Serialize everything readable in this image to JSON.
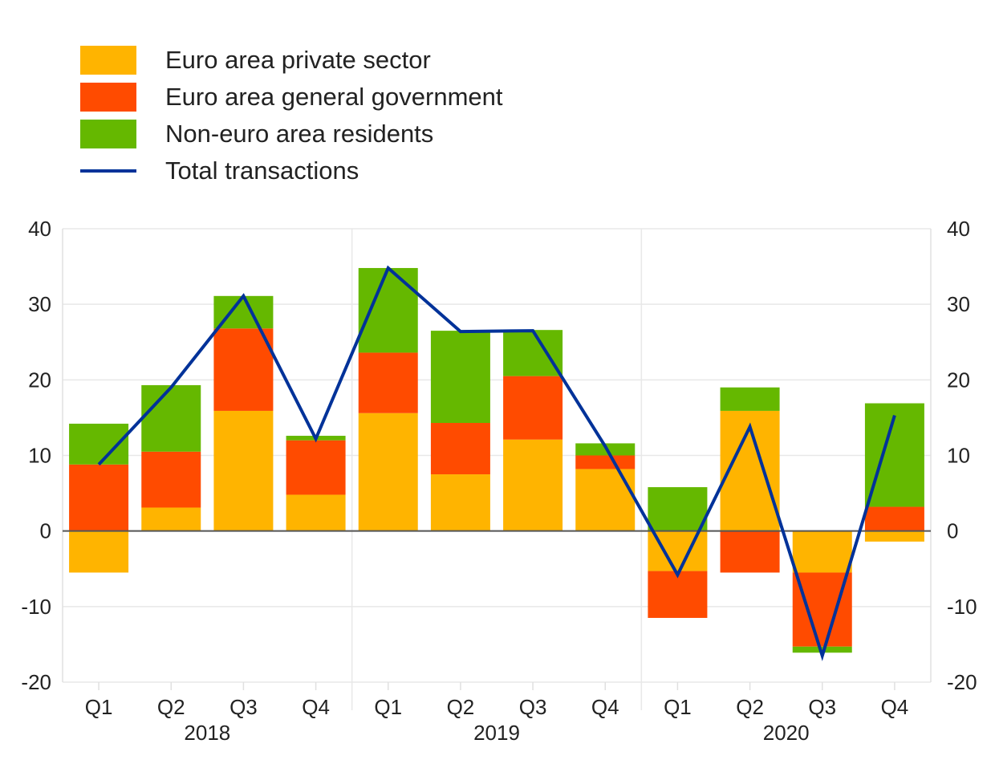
{
  "chart_data": {
    "type": "bar",
    "stacked": true,
    "title": "",
    "xlabel": "",
    "ylabel": "",
    "ylim": [
      -20,
      40
    ],
    "yticks": [
      40,
      30,
      20,
      10,
      0,
      -10,
      -20
    ],
    "grid": true,
    "legend_position": "top-left",
    "categories": [
      "Q1",
      "Q2",
      "Q3",
      "Q4",
      "Q1",
      "Q2",
      "Q3",
      "Q4",
      "Q1",
      "Q2",
      "Q3",
      "Q4"
    ],
    "year_groups": [
      {
        "label": "2018",
        "start": 0,
        "end": 3
      },
      {
        "label": "2019",
        "start": 4,
        "end": 7
      },
      {
        "label": "2020",
        "start": 8,
        "end": 11
      }
    ],
    "series": [
      {
        "name": "Euro area private sector",
        "color": "#FFB400",
        "kind": "bar",
        "values": [
          -5.5,
          3.1,
          15.9,
          4.8,
          15.6,
          7.5,
          12.1,
          8.2,
          -5.3,
          15.9,
          -5.5,
          -1.4
        ]
      },
      {
        "name": "Euro area general government",
        "color": "#FF4B00",
        "kind": "bar",
        "values": [
          8.8,
          7.4,
          10.9,
          7.2,
          8.0,
          6.8,
          8.4,
          1.8,
          -6.2,
          -5.5,
          -9.8,
          3.2
        ]
      },
      {
        "name": "Non-euro area residents",
        "color": "#65B800",
        "kind": "bar",
        "values": [
          5.4,
          8.8,
          4.3,
          0.6,
          11.2,
          12.2,
          6.1,
          1.6,
          5.8,
          3.1,
          -0.8,
          13.7
        ]
      },
      {
        "name": "Total transactions",
        "color": "#003299",
        "kind": "line",
        "values": [
          8.8,
          19.0,
          31.1,
          12.2,
          34.8,
          26.4,
          26.5,
          11.2,
          -5.8,
          13.8,
          -16.5,
          15.3
        ]
      }
    ]
  }
}
